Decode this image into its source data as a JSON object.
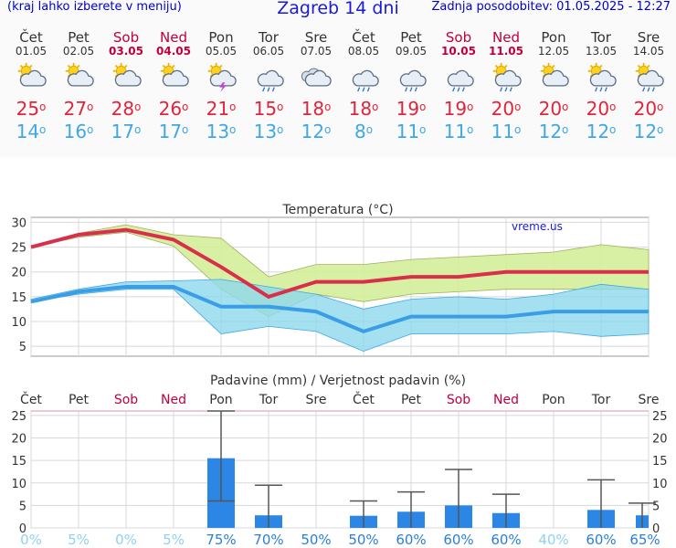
{
  "header": {
    "menu_hint": "(kraj lahko izberete v meniju)",
    "title": "Zagreb 14 dni",
    "updated": "Zadnja posodobitev: 01.05.2025 - 12:27"
  },
  "days": [
    {
      "name": "Čet",
      "date": "01.05",
      "icon": "sun-cloud-icon",
      "max": "25",
      "min": "14",
      "weekend": false
    },
    {
      "name": "Pet",
      "date": "02.05",
      "icon": "sun-cloud-icon",
      "max": "27",
      "min": "16",
      "weekend": false
    },
    {
      "name": "Sob",
      "date": "03.05",
      "icon": "sun-cloud-icon",
      "max": "28",
      "min": "17",
      "weekend": true
    },
    {
      "name": "Ned",
      "date": "04.05",
      "icon": "cloud-sun-icon",
      "max": "26",
      "min": "17",
      "weekend": true
    },
    {
      "name": "Pon",
      "date": "05.05",
      "icon": "sun-thunder-icon",
      "max": "21",
      "min": "13",
      "weekend": false
    },
    {
      "name": "Tor",
      "date": "06.05",
      "icon": "rain-cloud-icon",
      "max": "15",
      "min": "13",
      "weekend": false
    },
    {
      "name": "Sre",
      "date": "07.05",
      "icon": "cloudy-icon",
      "max": "18",
      "min": "12",
      "weekend": false
    },
    {
      "name": "Čet",
      "date": "08.05",
      "icon": "rain-cloud-icon",
      "max": "18",
      "min": "8",
      "weekend": false
    },
    {
      "name": "Pet",
      "date": "09.05",
      "icon": "rain-cloud-icon",
      "max": "19",
      "min": "11",
      "weekend": false
    },
    {
      "name": "Sob",
      "date": "10.05",
      "icon": "rain-cloud-icon",
      "max": "19",
      "min": "11",
      "weekend": true
    },
    {
      "name": "Ned",
      "date": "11.05",
      "icon": "sun-rain-icon",
      "max": "20",
      "min": "11",
      "weekend": true
    },
    {
      "name": "Pon",
      "date": "12.05",
      "icon": "sun-cloud-icon",
      "max": "20",
      "min": "12",
      "weekend": false
    },
    {
      "name": "Tor",
      "date": "13.05",
      "icon": "sun-rain-icon",
      "max": "20",
      "min": "12",
      "weekend": false
    },
    {
      "name": "Sre",
      "date": "14.05",
      "icon": "sun-rain-icon",
      "max": "20",
      "min": "12",
      "weekend": false
    }
  ],
  "degree_symbol": "o",
  "colors": {
    "max_temp": "#e0243c",
    "min_temp": "#3fa7e6",
    "weekend": "#c0003c",
    "bar": "#2b86e6",
    "green_band": "#d4ee9a",
    "blue_band": "#8ed8ec"
  },
  "chart_data": [
    {
      "type": "line",
      "title": "Temperatura (°C)",
      "watermark": "vreme.us",
      "ylim": [
        3,
        31
      ],
      "yticks": [
        5,
        10,
        15,
        20,
        25,
        30
      ],
      "grid": true,
      "series": [
        {
          "key": "max",
          "values": [
            25,
            27.5,
            28.5,
            26.5,
            21,
            15,
            18,
            18,
            19,
            19,
            20,
            20,
            20,
            20
          ]
        },
        {
          "key": "max_upper",
          "values": [
            25.2,
            27.8,
            29.5,
            27.5,
            26.8,
            19,
            21.5,
            21.5,
            22.5,
            23,
            23.5,
            24,
            25.5,
            24.5
          ]
        },
        {
          "key": "max_lower",
          "values": [
            25,
            27,
            28,
            25.2,
            16.5,
            11,
            15.5,
            14,
            15.5,
            16,
            16.5,
            16.5,
            16.5,
            16.5
          ]
        },
        {
          "key": "min",
          "values": [
            14,
            16,
            17,
            17,
            13,
            13,
            12,
            8,
            11,
            11,
            11,
            12,
            12,
            12
          ]
        },
        {
          "key": "min_upper",
          "values": [
            14.5,
            16.5,
            18,
            18.2,
            18.5,
            17,
            15.5,
            12.5,
            14.5,
            15,
            14.5,
            15.5,
            17.5,
            16.5
          ]
        },
        {
          "key": "min_lower",
          "values": [
            14,
            15.5,
            16.5,
            16.5,
            7.5,
            9,
            8,
            4,
            7.5,
            7.5,
            7.5,
            8,
            7,
            7.5
          ]
        }
      ]
    },
    {
      "type": "bar",
      "title": "Padavine (mm) / Verjetnost padavin (%)",
      "ylim": [
        0,
        26
      ],
      "yticks": [
        0,
        5,
        10,
        15,
        20,
        25
      ],
      "grid": true,
      "categories": [
        "Čet",
        "Pet",
        "Sob",
        "Ned",
        "Pon",
        "Tor",
        "Sre",
        "Čet",
        "Pet",
        "Sob",
        "Ned",
        "Pon",
        "Tor",
        "Sre"
      ],
      "weekend": [
        false,
        false,
        true,
        true,
        false,
        false,
        false,
        false,
        false,
        true,
        true,
        false,
        false,
        false
      ],
      "values": [
        0,
        0,
        0,
        0,
        15.5,
        2.8,
        0,
        2.7,
        3.6,
        5,
        3.3,
        0,
        4,
        2.8
      ],
      "error_low": [
        null,
        null,
        null,
        null,
        6,
        0,
        null,
        0,
        0,
        0,
        0,
        null,
        0,
        0
      ],
      "error_high": [
        null,
        null,
        null,
        null,
        26,
        9.5,
        null,
        6,
        8,
        13,
        7.5,
        null,
        10.7,
        5.5
      ],
      "probability": [
        "0%",
        "5%",
        "0%",
        "5%",
        "75%",
        "70%",
        "50%",
        "50%",
        "60%",
        "60%",
        "60%",
        "40%",
        "60%",
        "65%"
      ]
    }
  ]
}
